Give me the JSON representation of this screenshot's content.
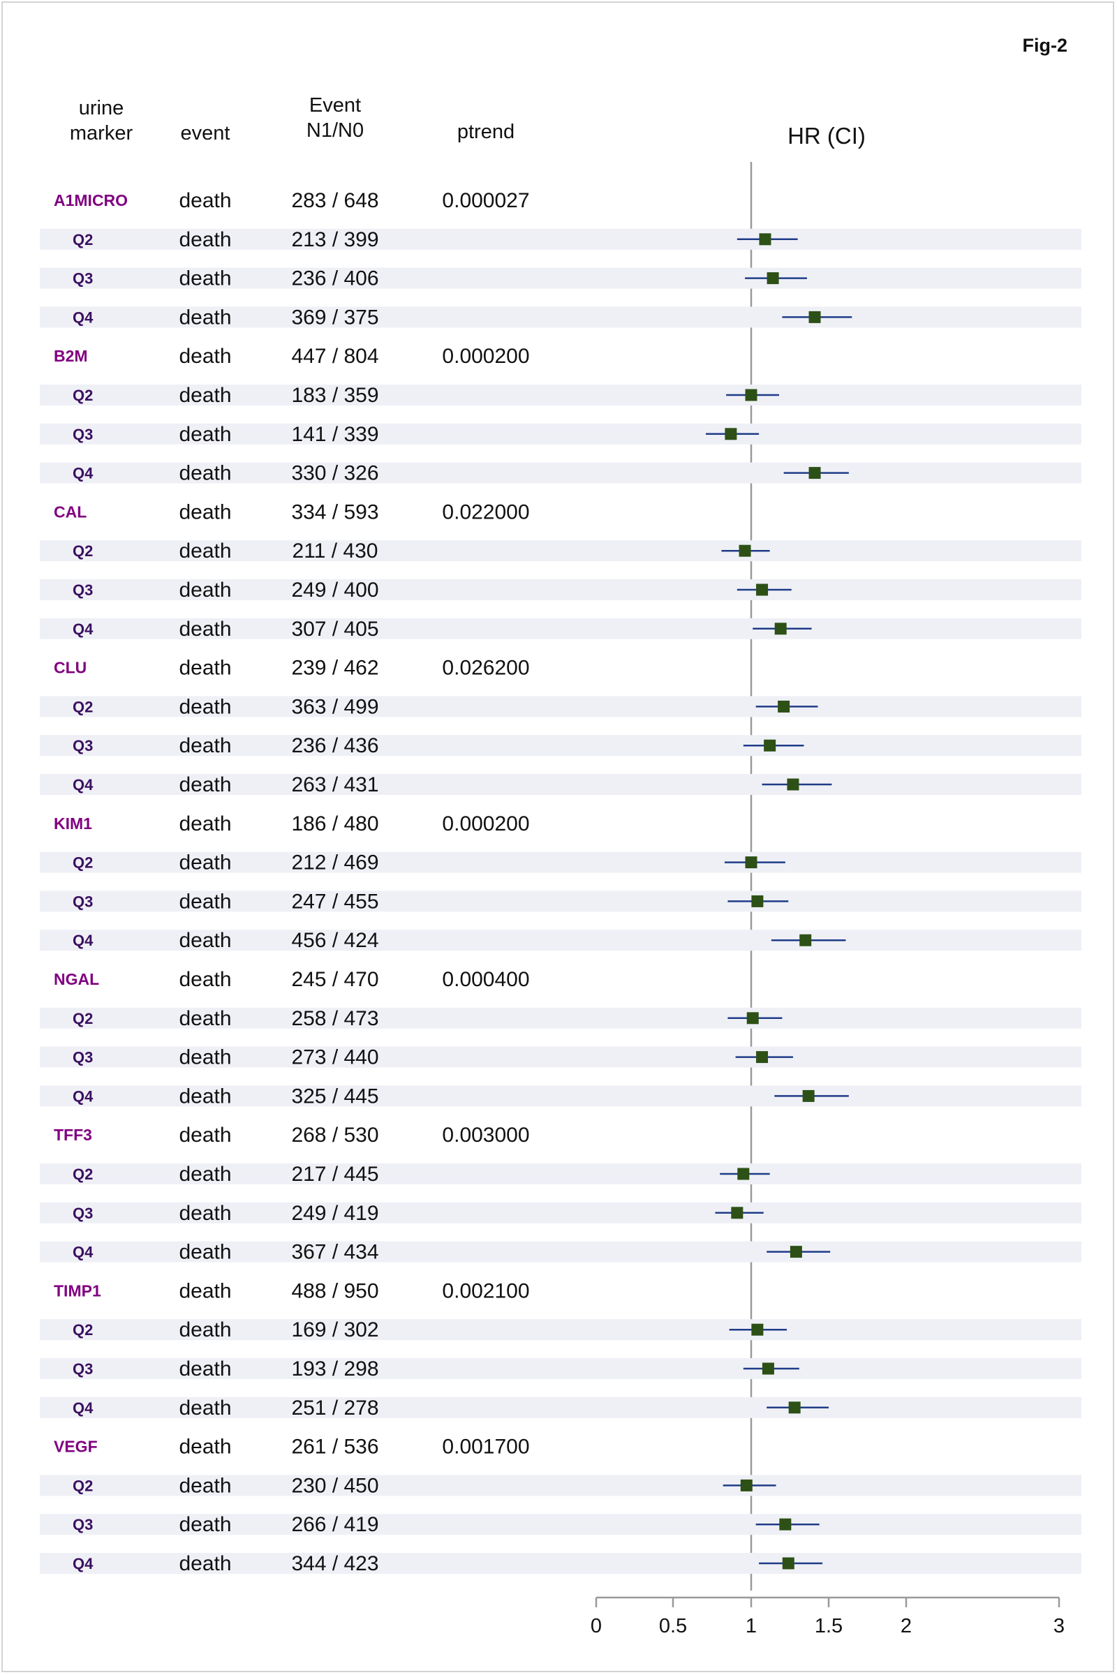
{
  "figure_label": "Fig-2",
  "headers": {
    "marker_line1": "urine",
    "marker_line2": "marker",
    "event": "event",
    "events_line1": "Event",
    "events_line2": "N1/N0",
    "ptrend": "ptrend",
    "hr": "HR (CI)"
  },
  "colors": {
    "marker_label": "#800080",
    "quartile_label": "#3a1060",
    "point": "#2d5016",
    "ci_line": "#1f3c88",
    "ref_line": "#999999",
    "band": "#eff0f6"
  },
  "chart_data": {
    "type": "forest",
    "title": "HR (CI)",
    "x_axis": {
      "ticks": [
        0,
        0.5,
        1,
        1.5,
        2,
        3
      ],
      "tick_labels": [
        "0",
        "0.5",
        "1",
        "1.5",
        "2",
        "3"
      ],
      "reference": 1
    },
    "rows": [
      {
        "label": "A1MICRO",
        "kind": "marker",
        "event": "death",
        "n": "283 / 648",
        "ptrend": "0.000027"
      },
      {
        "label": "Q2",
        "kind": "quartile",
        "event": "death",
        "n": "213 / 399",
        "hr": 1.09,
        "lo": 0.91,
        "hi": 1.3
      },
      {
        "label": "Q3",
        "kind": "quartile",
        "event": "death",
        "n": "236 / 406",
        "hr": 1.14,
        "lo": 0.96,
        "hi": 1.36
      },
      {
        "label": "Q4",
        "kind": "quartile",
        "event": "death",
        "n": "369 / 375",
        "hr": 1.41,
        "lo": 1.2,
        "hi": 1.65
      },
      {
        "label": "B2M",
        "kind": "marker",
        "event": "death",
        "n": "447 / 804",
        "ptrend": "0.000200"
      },
      {
        "label": "Q2",
        "kind": "quartile",
        "event": "death",
        "n": "183 / 359",
        "hr": 1.0,
        "lo": 0.84,
        "hi": 1.18
      },
      {
        "label": "Q3",
        "kind": "quartile",
        "event": "death",
        "n": "141 / 339",
        "hr": 0.87,
        "lo": 0.71,
        "hi": 1.05
      },
      {
        "label": "Q4",
        "kind": "quartile",
        "event": "death",
        "n": "330 / 326",
        "hr": 1.41,
        "lo": 1.21,
        "hi": 1.63
      },
      {
        "label": "CAL",
        "kind": "marker",
        "event": "death",
        "n": "334 / 593",
        "ptrend": "0.022000"
      },
      {
        "label": "Q2",
        "kind": "quartile",
        "event": "death",
        "n": "211 / 430",
        "hr": 0.96,
        "lo": 0.81,
        "hi": 1.12
      },
      {
        "label": "Q3",
        "kind": "quartile",
        "event": "death",
        "n": "249 / 400",
        "hr": 1.07,
        "lo": 0.91,
        "hi": 1.26
      },
      {
        "label": "Q4",
        "kind": "quartile",
        "event": "death",
        "n": "307 / 405",
        "hr": 1.19,
        "lo": 1.01,
        "hi": 1.39
      },
      {
        "label": "CLU",
        "kind": "marker",
        "event": "death",
        "n": "239 / 462",
        "ptrend": "0.026200"
      },
      {
        "label": "Q2",
        "kind": "quartile",
        "event": "death",
        "n": "363 / 499",
        "hr": 1.21,
        "lo": 1.03,
        "hi": 1.43
      },
      {
        "label": "Q3",
        "kind": "quartile",
        "event": "death",
        "n": "236 / 436",
        "hr": 1.12,
        "lo": 0.95,
        "hi": 1.34
      },
      {
        "label": "Q4",
        "kind": "quartile",
        "event": "death",
        "n": "263 / 431",
        "hr": 1.27,
        "lo": 1.07,
        "hi": 1.52
      },
      {
        "label": "KIM1",
        "kind": "marker",
        "event": "death",
        "n": "186 / 480",
        "ptrend": "0.000200"
      },
      {
        "label": "Q2",
        "kind": "quartile",
        "event": "death",
        "n": "212 / 469",
        "hr": 1.0,
        "lo": 0.83,
        "hi": 1.22
      },
      {
        "label": "Q3",
        "kind": "quartile",
        "event": "death",
        "n": "247 / 455",
        "hr": 1.04,
        "lo": 0.85,
        "hi": 1.24
      },
      {
        "label": "Q4",
        "kind": "quartile",
        "event": "death",
        "n": "456 / 424",
        "hr": 1.35,
        "lo": 1.13,
        "hi": 1.61
      },
      {
        "label": "NGAL",
        "kind": "marker",
        "event": "death",
        "n": "245 / 470",
        "ptrend": "0.000400"
      },
      {
        "label": "Q2",
        "kind": "quartile",
        "event": "death",
        "n": "258 / 473",
        "hr": 1.01,
        "lo": 0.85,
        "hi": 1.2
      },
      {
        "label": "Q3",
        "kind": "quartile",
        "event": "death",
        "n": "273 / 440",
        "hr": 1.07,
        "lo": 0.9,
        "hi": 1.27
      },
      {
        "label": "Q4",
        "kind": "quartile",
        "event": "death",
        "n": "325 / 445",
        "hr": 1.37,
        "lo": 1.15,
        "hi": 1.63
      },
      {
        "label": "TFF3",
        "kind": "marker",
        "event": "death",
        "n": "268 / 530",
        "ptrend": "0.003000"
      },
      {
        "label": "Q2",
        "kind": "quartile",
        "event": "death",
        "n": "217 / 445",
        "hr": 0.95,
        "lo": 0.8,
        "hi": 1.12
      },
      {
        "label": "Q3",
        "kind": "quartile",
        "event": "death",
        "n": "249 / 419",
        "hr": 0.91,
        "lo": 0.77,
        "hi": 1.08
      },
      {
        "label": "Q4",
        "kind": "quartile",
        "event": "death",
        "n": "367 / 434",
        "hr": 1.29,
        "lo": 1.1,
        "hi": 1.51
      },
      {
        "label": "TIMP1",
        "kind": "marker",
        "event": "death",
        "n": "488 / 950",
        "ptrend": "0.002100"
      },
      {
        "label": "Q2",
        "kind": "quartile",
        "event": "death",
        "n": "169 / 302",
        "hr": 1.04,
        "lo": 0.86,
        "hi": 1.23
      },
      {
        "label": "Q3",
        "kind": "quartile",
        "event": "death",
        "n": "193 / 298",
        "hr": 1.11,
        "lo": 0.95,
        "hi": 1.31
      },
      {
        "label": "Q4",
        "kind": "quartile",
        "event": "death",
        "n": "251 / 278",
        "hr": 1.28,
        "lo": 1.1,
        "hi": 1.5
      },
      {
        "label": "VEGF",
        "kind": "marker",
        "event": "death",
        "n": "261 / 536",
        "ptrend": "0.001700"
      },
      {
        "label": "Q2",
        "kind": "quartile",
        "event": "death",
        "n": "230 / 450",
        "hr": 0.97,
        "lo": 0.82,
        "hi": 1.16
      },
      {
        "label": "Q3",
        "kind": "quartile",
        "event": "death",
        "n": "266 / 419",
        "hr": 1.22,
        "lo": 1.03,
        "hi": 1.44
      },
      {
        "label": "Q4",
        "kind": "quartile",
        "event": "death",
        "n": "344 / 423",
        "hr": 1.24,
        "lo": 1.05,
        "hi": 1.46
      }
    ]
  }
}
